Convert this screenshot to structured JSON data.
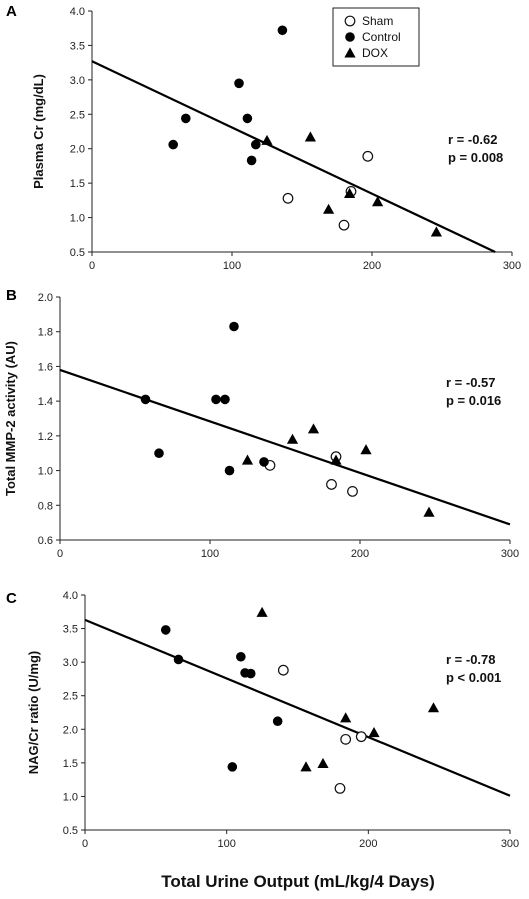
{
  "xlabel": "Total Urine Output (mL/kg/4 Days)",
  "legend": [
    {
      "name": "Sham",
      "marker": "open-circle"
    },
    {
      "name": "Control",
      "marker": "filled-circle"
    },
    {
      "name": "DOX",
      "marker": "filled-triangle"
    }
  ],
  "chart_data": [
    {
      "type": "scatter",
      "panel_label": "A",
      "ylabel": "Plasma Cr (mg/dL)",
      "xlim": [
        0,
        300
      ],
      "ylim": [
        0.5,
        4.0
      ],
      "x_ticks": [
        "0",
        "100",
        "200",
        "300"
      ],
      "x_tick_values": [
        0,
        100,
        200,
        300
      ],
      "y_ticks": [
        "0.5",
        "1.0",
        "1.5",
        "2.0",
        "2.5",
        "3.0",
        "3.5",
        "4.0"
      ],
      "y_tick_values": [
        0.5,
        1.0,
        1.5,
        2.0,
        2.5,
        3.0,
        3.5,
        4.0
      ],
      "stats": {
        "r": "r = -0.62",
        "p": "p = 0.008"
      },
      "has_legend": true,
      "legend_placement": "top-right",
      "regression": {
        "x": [
          0,
          288
        ],
        "y": [
          3.27,
          0.5
        ]
      },
      "series": [
        {
          "name": "Sham",
          "marker": "open-circle",
          "points": [
            [
              140,
              1.28
            ],
            [
              185,
              1.38
            ],
            [
              197,
              1.89
            ],
            [
              180,
              0.89
            ]
          ]
        },
        {
          "name": "Control",
          "marker": "filled-circle",
          "points": [
            [
              58,
              2.06
            ],
            [
              67,
              2.44
            ],
            [
              105,
              2.95
            ],
            [
              111,
              2.44
            ],
            [
              114,
              1.83
            ],
            [
              117,
              2.06
            ],
            [
              136,
              3.72
            ]
          ]
        },
        {
          "name": "DOX",
          "marker": "filled-triangle",
          "points": [
            [
              125,
              2.12
            ],
            [
              156,
              2.17
            ],
            [
              169,
              1.12
            ],
            [
              184,
              1.35
            ],
            [
              204,
              1.23
            ],
            [
              246,
              0.79
            ]
          ]
        }
      ]
    },
    {
      "type": "scatter",
      "panel_label": "B",
      "ylabel": "Total MMP-2 activity (AU)",
      "xlim": [
        0,
        300
      ],
      "ylim": [
        0.6,
        2.0
      ],
      "x_ticks": [
        "0",
        "100",
        "200",
        "300"
      ],
      "x_tick_values": [
        0,
        100,
        200,
        300
      ],
      "y_ticks": [
        "0.6",
        "0.8",
        "1.0",
        "1.2",
        "1.4",
        "1.6",
        "1.8",
        "2.0"
      ],
      "y_tick_values": [
        0.6,
        0.8,
        1.0,
        1.2,
        1.4,
        1.6,
        1.8,
        2.0
      ],
      "stats": {
        "r": "r = -0.57",
        "p": "p = 0.016"
      },
      "has_legend": false,
      "regression": {
        "x": [
          0,
          300
        ],
        "y": [
          1.58,
          0.69
        ]
      },
      "series": [
        {
          "name": "Sham",
          "marker": "open-circle",
          "points": [
            [
              140,
              1.03
            ],
            [
              181,
              0.92
            ],
            [
              184,
              1.08
            ],
            [
              195,
              0.88
            ]
          ]
        },
        {
          "name": "Control",
          "marker": "filled-circle",
          "points": [
            [
              57,
              1.41
            ],
            [
              66,
              1.1
            ],
            [
              104,
              1.41
            ],
            [
              110,
              1.41
            ],
            [
              113,
              1.0
            ],
            [
              116,
              1.83
            ],
            [
              136,
              1.05
            ]
          ]
        },
        {
          "name": "DOX",
          "marker": "filled-triangle",
          "points": [
            [
              125,
              1.06
            ],
            [
              155,
              1.18
            ],
            [
              169,
              1.24
            ],
            [
              184,
              1.06
            ],
            [
              204,
              1.12
            ],
            [
              246,
              0.76
            ]
          ]
        }
      ]
    },
    {
      "type": "scatter",
      "panel_label": "C",
      "ylabel": "NAG/Cr ratio (U/mg)",
      "xlim": [
        0,
        300
      ],
      "ylim": [
        0.5,
        4.0
      ],
      "x_ticks": [
        "0",
        "100",
        "200",
        "300"
      ],
      "x_tick_values": [
        0,
        100,
        200,
        300
      ],
      "y_ticks": [
        "0.5",
        "1.0",
        "1.5",
        "2.0",
        "2.5",
        "3.0",
        "3.5",
        "4.0"
      ],
      "y_tick_values": [
        0.5,
        1.0,
        1.5,
        2.0,
        2.5,
        3.0,
        3.5,
        4.0
      ],
      "stats": {
        "r": "r = -0.78",
        "p": "p < 0.001"
      },
      "has_legend": false,
      "regression": {
        "x": [
          0,
          300
        ],
        "y": [
          3.63,
          1.01
        ]
      },
      "series": [
        {
          "name": "Sham",
          "marker": "open-circle",
          "points": [
            [
              140,
              2.88
            ],
            [
              180,
              1.12
            ],
            [
              184,
              1.85
            ],
            [
              195,
              1.89
            ]
          ]
        },
        {
          "name": "Control",
          "marker": "filled-circle",
          "points": [
            [
              57,
              3.48
            ],
            [
              66,
              3.04
            ],
            [
              104,
              1.44
            ],
            [
              110,
              3.08
            ],
            [
              113,
              2.84
            ],
            [
              117,
              2.83
            ],
            [
              136,
              2.12
            ]
          ]
        },
        {
          "name": "DOX",
          "marker": "filled-triangle",
          "points": [
            [
              125,
              3.74
            ],
            [
              156,
              1.44
            ],
            [
              168,
              1.49
            ],
            [
              184,
              2.17
            ],
            [
              204,
              1.95
            ],
            [
              246,
              2.32
            ]
          ]
        }
      ]
    }
  ]
}
